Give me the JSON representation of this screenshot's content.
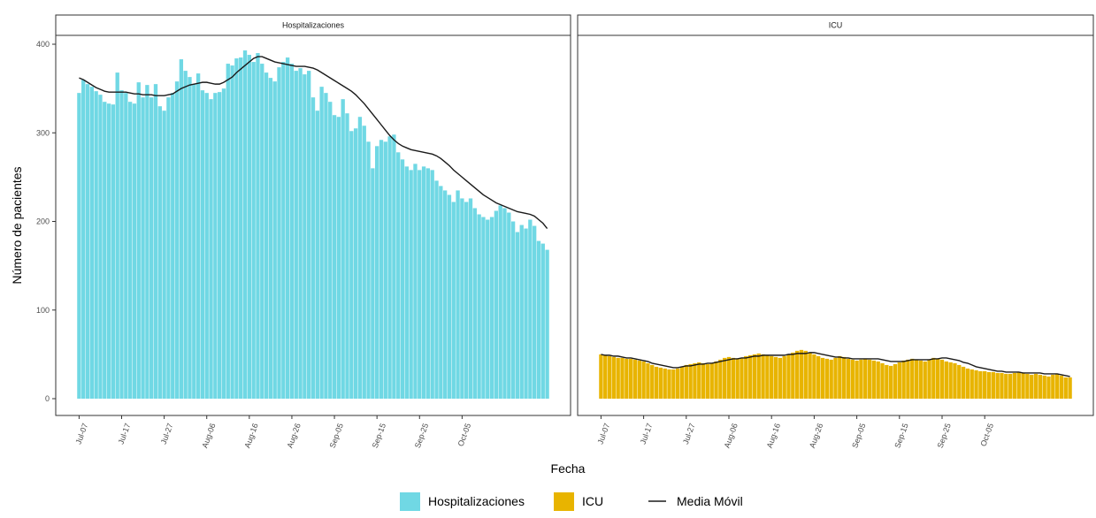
{
  "colors": {
    "hosp": "#70D8E4",
    "icu": "#E8B400",
    "ma": "#1a1a1a",
    "panel_border": "#333333",
    "strip_fill": "#ffffff"
  },
  "chart_data": {
    "type": "bar",
    "xlabel": "Fecha",
    "ylabel": "Número de pacientes",
    "ylim": [
      0,
      410
    ],
    "y_ticks": [
      0,
      100,
      200,
      300,
      400
    ],
    "x_ticks": [
      "Jul-07",
      "Jul-17",
      "Jul-27",
      "Aug-06",
      "Aug-16",
      "Aug-26",
      "Sep-05",
      "Sep-15",
      "Sep-25",
      "Oct-05"
    ],
    "grid": false,
    "legend_position": "bottom",
    "legend": [
      {
        "label": "Hospitalizaciones",
        "kind": "fill",
        "color_key": "hosp"
      },
      {
        "label": "ICU",
        "kind": "fill",
        "color_key": "icu"
      },
      {
        "label": "Media Móvil",
        "kind": "line",
        "color_key": "ma"
      }
    ],
    "panels": [
      {
        "title": "Hospitalizaciones",
        "series": "Hospitalizaciones",
        "color_key": "hosp",
        "values": [
          345,
          360,
          355,
          352,
          347,
          343,
          335,
          333,
          332,
          368,
          348,
          345,
          335,
          333,
          357,
          340,
          354,
          340,
          355,
          330,
          325,
          340,
          345,
          358,
          383,
          370,
          363,
          355,
          367,
          348,
          345,
          338,
          345,
          346,
          350,
          378,
          376,
          384,
          385,
          393,
          388,
          380,
          390,
          378,
          368,
          362,
          358,
          374,
          380,
          385,
          378,
          370,
          373,
          366,
          370,
          340,
          325,
          352,
          345,
          335,
          320,
          318,
          338,
          322,
          302,
          305,
          318,
          308,
          290,
          260,
          285,
          292,
          290,
          296,
          298,
          278,
          270,
          262,
          258,
          265,
          258,
          262,
          260,
          258,
          246,
          240,
          235,
          230,
          222,
          235,
          226,
          222,
          226,
          215,
          208,
          205,
          202,
          205,
          212,
          218,
          215,
          210,
          200,
          188,
          196,
          192,
          202,
          195,
          178,
          175,
          168
        ],
        "moving_average": [
          362,
          360,
          357,
          354,
          351,
          349,
          347,
          346,
          346,
          346,
          346,
          346,
          345,
          344,
          344,
          343,
          343,
          343,
          342,
          342,
          342,
          343,
          344,
          347,
          350,
          352,
          354,
          355,
          356,
          357,
          357,
          356,
          355,
          355,
          357,
          360,
          363,
          368,
          372,
          376,
          380,
          384,
          386,
          386,
          384,
          382,
          380,
          379,
          378,
          377,
          376,
          375,
          375,
          375,
          374,
          373,
          371,
          368,
          365,
          362,
          359,
          356,
          353,
          350,
          347,
          343,
          338,
          333,
          327,
          321,
          315,
          309,
          303,
          297,
          292,
          288,
          285,
          283,
          281,
          280,
          279,
          278,
          277,
          276,
          274,
          271,
          267,
          263,
          258,
          254,
          250,
          246,
          242,
          238,
          234,
          230,
          227,
          224,
          221,
          219,
          217,
          215,
          213,
          211,
          210,
          209,
          208,
          206,
          202,
          198,
          192
        ]
      },
      {
        "title": "ICU",
        "series": "ICU",
        "color_key": "icu",
        "values": [
          50,
          49,
          48,
          47,
          46,
          46,
          45,
          45,
          44,
          43,
          42,
          40,
          38,
          36,
          35,
          34,
          33,
          33,
          34,
          36,
          38,
          39,
          40,
          41,
          40,
          39,
          40,
          42,
          44,
          46,
          47,
          46,
          45,
          46,
          48,
          49,
          50,
          51,
          50,
          49,
          48,
          47,
          46,
          48,
          50,
          52,
          54,
          55,
          54,
          52,
          50,
          48,
          46,
          45,
          44,
          46,
          48,
          47,
          45,
          44,
          43,
          44,
          45,
          44,
          43,
          42,
          40,
          38,
          37,
          39,
          41,
          43,
          44,
          45,
          44,
          43,
          42,
          44,
          46,
          45,
          44,
          42,
          41,
          40,
          38,
          36,
          34,
          33,
          32,
          31,
          31,
          30,
          30,
          29,
          29,
          28,
          28,
          29,
          30,
          29,
          28,
          27,
          28,
          27,
          26,
          25,
          27,
          28,
          26,
          24,
          24
        ],
        "moving_average": [
          50,
          49,
          49,
          48,
          48,
          47,
          46,
          46,
          45,
          44,
          43,
          42,
          40,
          39,
          38,
          37,
          36,
          35,
          35,
          36,
          37,
          37,
          38,
          39,
          39,
          40,
          40,
          41,
          42,
          43,
          44,
          45,
          45,
          46,
          46,
          47,
          48,
          48,
          49,
          49,
          49,
          49,
          49,
          49,
          50,
          50,
          51,
          51,
          51,
          52,
          52,
          51,
          50,
          49,
          48,
          47,
          47,
          46,
          46,
          45,
          45,
          45,
          45,
          45,
          45,
          45,
          44,
          43,
          42,
          42,
          42,
          42,
          43,
          44,
          44,
          44,
          44,
          44,
          45,
          45,
          46,
          46,
          45,
          44,
          43,
          41,
          40,
          38,
          36,
          35,
          34,
          33,
          32,
          31,
          31,
          30,
          30,
          30,
          30,
          29,
          29,
          29,
          29,
          29,
          28,
          28,
          28,
          28,
          27,
          26,
          25
        ]
      }
    ]
  }
}
